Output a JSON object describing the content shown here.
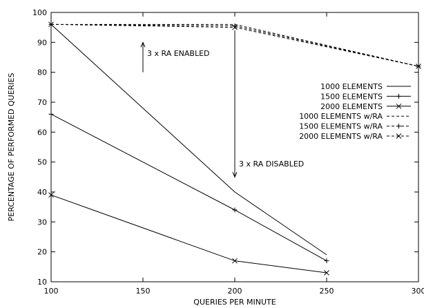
{
  "chart_data": {
    "type": "line",
    "xlabel": "QUERIES PER MINUTE",
    "ylabel": "PERCENTAGE OF PERFORMED QUERIES",
    "xlim": [
      100,
      300
    ],
    "ylim": [
      10,
      100
    ],
    "xticks": [
      100,
      150,
      200,
      250,
      300
    ],
    "yticks": [
      10,
      20,
      30,
      40,
      50,
      60,
      70,
      80,
      90,
      100
    ],
    "grid": false,
    "legend_position": "right",
    "series": [
      {
        "name": "1000 ELEMENTS",
        "marker": "none",
        "dash": "solid",
        "x": [
          100,
          200,
          250
        ],
        "y": [
          96,
          40,
          19
        ]
      },
      {
        "name": "1500 ELEMENTS",
        "marker": "plus",
        "dash": "solid",
        "x": [
          100,
          200,
          250
        ],
        "y": [
          66,
          34,
          17
        ]
      },
      {
        "name": "2000 ELEMENTS",
        "marker": "cross",
        "dash": "solid",
        "x": [
          100,
          200,
          250
        ],
        "y": [
          39,
          17,
          13
        ]
      },
      {
        "name": "1000 ELEMENTS w/RA",
        "marker": "none",
        "dash": "dashed",
        "x": [
          100,
          200,
          300
        ],
        "y": [
          96,
          96,
          82
        ]
      },
      {
        "name": "1500 ELEMENTS w/RA",
        "marker": "plus",
        "dash": "dashed",
        "x": [
          100,
          200,
          300
        ],
        "y": [
          96,
          95.5,
          82
        ]
      },
      {
        "name": "2000 ELEMENTS w/RA",
        "marker": "cross",
        "dash": "dashed",
        "x": [
          100,
          200,
          300
        ],
        "y": [
          96,
          95,
          82
        ]
      }
    ],
    "annotations": [
      {
        "text": "3 x RA ENABLED",
        "arrow": "up",
        "from": [
          150,
          80
        ],
        "to": [
          150,
          90
        ]
      },
      {
        "text": "3 x RA DISABLED",
        "arrow": "down",
        "from": [
          200,
          94
        ],
        "to": [
          200,
          45
        ]
      }
    ]
  }
}
